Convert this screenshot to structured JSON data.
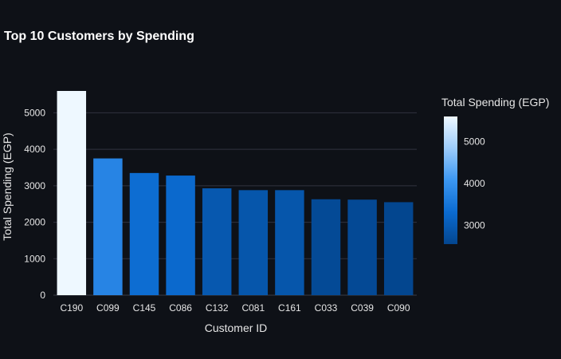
{
  "chart_data": {
    "type": "bar",
    "title": "Top 10 Customers by Spending",
    "xlabel": "Customer ID",
    "ylabel": "Total Spending (EGP)",
    "categories": [
      "C190",
      "C099",
      "C145",
      "C086",
      "C132",
      "C081",
      "C161",
      "C033",
      "C039",
      "C090"
    ],
    "values": [
      5600,
      3750,
      3350,
      3280,
      2930,
      2880,
      2880,
      2630,
      2620,
      2550
    ],
    "ylim": [
      0,
      5600
    ],
    "yticks": [
      "0",
      "1000",
      "2000",
      "3000",
      "4000",
      "5000"
    ],
    "grid": true,
    "colorbar": {
      "title": "Total Spending (EGP)",
      "ticks": [
        "3000",
        "4000",
        "5000"
      ],
      "range": [
        2550,
        5600
      ],
      "colorscale": [
        "#03468f",
        "#0b6bd0",
        "#3b97f2",
        "#9cccfb",
        "#eef8ff"
      ]
    },
    "background": "#0e1117",
    "gridcolor": "#31333f"
  }
}
